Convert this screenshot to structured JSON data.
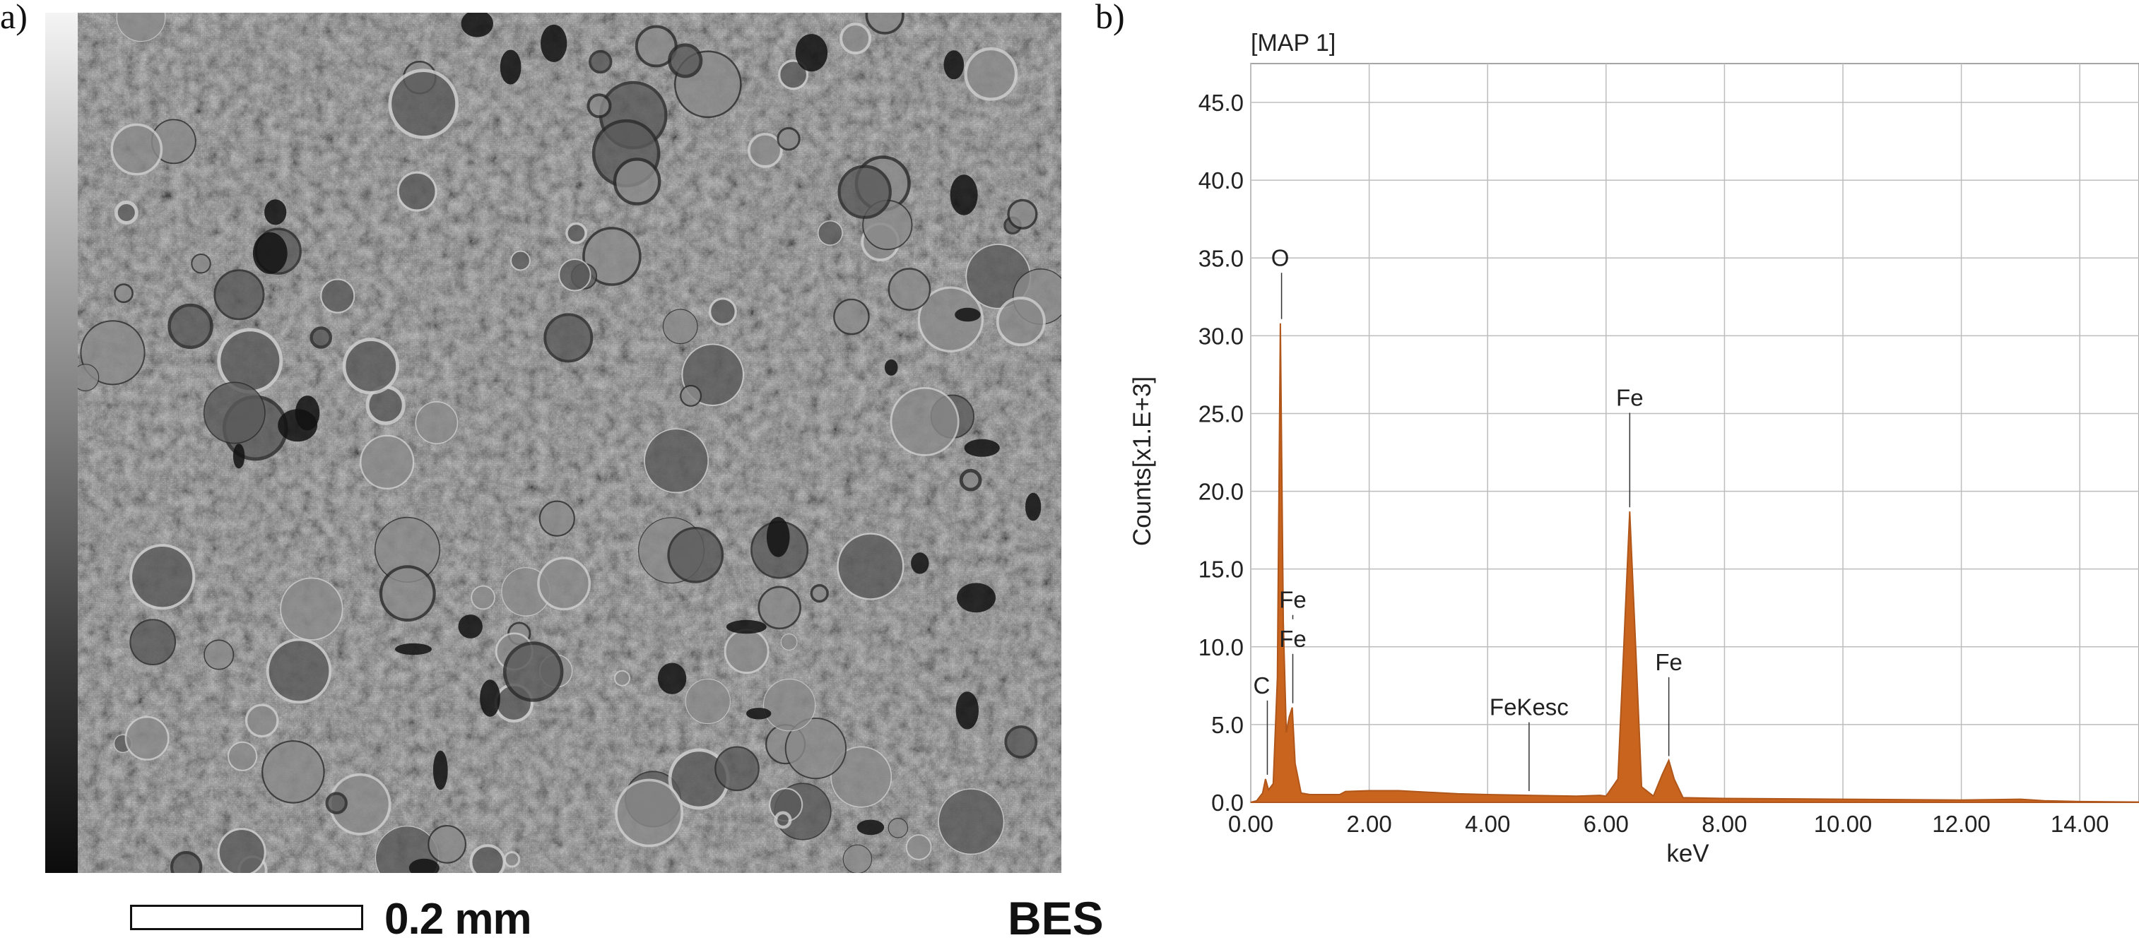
{
  "panel_labels": {
    "a": "a)",
    "b": "b)"
  },
  "sem": {
    "scale_bar_label": "0.2 mm",
    "detector_label": "BES"
  },
  "chart_data": {
    "type": "line",
    "title": "[MAP 1]",
    "xlabel": "keV",
    "ylabel": "Counts[x1.E+3]",
    "xlim": [
      0,
      15
    ],
    "ylim": [
      0,
      47.5
    ],
    "grid": true,
    "fill": true,
    "color": "#c8641e",
    "x_ticks": [
      "0.00",
      "2.00",
      "4.00",
      "6.00",
      "8.00",
      "10.00",
      "12.00",
      "14.00"
    ],
    "y_ticks": [
      "0.0",
      "5.0",
      "10.0",
      "15.0",
      "20.0",
      "25.0",
      "30.0",
      "35.0",
      "40.0",
      "45.0"
    ],
    "spectrum": [
      [
        0.0,
        0.0
      ],
      [
        0.1,
        0.1
      ],
      [
        0.2,
        0.6
      ],
      [
        0.25,
        1.5
      ],
      [
        0.3,
        0.8
      ],
      [
        0.38,
        1.2
      ],
      [
        0.45,
        8.0
      ],
      [
        0.5,
        30.8
      ],
      [
        0.55,
        11.5
      ],
      [
        0.6,
        4.5
      ],
      [
        0.65,
        5.5
      ],
      [
        0.7,
        6.1
      ],
      [
        0.75,
        2.5
      ],
      [
        0.85,
        0.6
      ],
      [
        1.0,
        0.5
      ],
      [
        1.5,
        0.5
      ],
      [
        1.6,
        0.7
      ],
      [
        2.0,
        0.75
      ],
      [
        2.5,
        0.75
      ],
      [
        3.0,
        0.65
      ],
      [
        3.5,
        0.55
      ],
      [
        4.0,
        0.5
      ],
      [
        4.7,
        0.45
      ],
      [
        5.5,
        0.4
      ],
      [
        5.9,
        0.45
      ],
      [
        6.0,
        0.4
      ],
      [
        6.2,
        1.5
      ],
      [
        6.3,
        10.0
      ],
      [
        6.4,
        18.7
      ],
      [
        6.5,
        10.0
      ],
      [
        6.6,
        1.0
      ],
      [
        6.8,
        0.4
      ],
      [
        6.95,
        1.8
      ],
      [
        7.06,
        2.7
      ],
      [
        7.15,
        1.5
      ],
      [
        7.3,
        0.3
      ],
      [
        8.0,
        0.25
      ],
      [
        10.0,
        0.2
      ],
      [
        12.0,
        0.15
      ],
      [
        13.0,
        0.2
      ],
      [
        13.4,
        0.1
      ],
      [
        14.0,
        0.05
      ],
      [
        15.0,
        0.02
      ]
    ],
    "peak_labels": [
      {
        "text": "O",
        "x": 0.52,
        "y": 30.8,
        "label_y": 34.5
      },
      {
        "text": "C",
        "x": 0.28,
        "y": 1.5,
        "label_y": 7.0
      },
      {
        "text": "Fe",
        "x": 0.71,
        "y": 11.5,
        "label_y": 12.5
      },
      {
        "text": "Fe",
        "x": 0.71,
        "y": 6.1,
        "label_y": 10.0
      },
      {
        "text": "FeKesc",
        "x": 4.7,
        "y": 0.45,
        "label_y": 5.6
      },
      {
        "text": "Fe",
        "x": 6.4,
        "y": 18.7,
        "label_y": 25.5
      },
      {
        "text": "Fe",
        "x": 7.06,
        "y": 2.7,
        "label_y": 8.5
      }
    ]
  }
}
